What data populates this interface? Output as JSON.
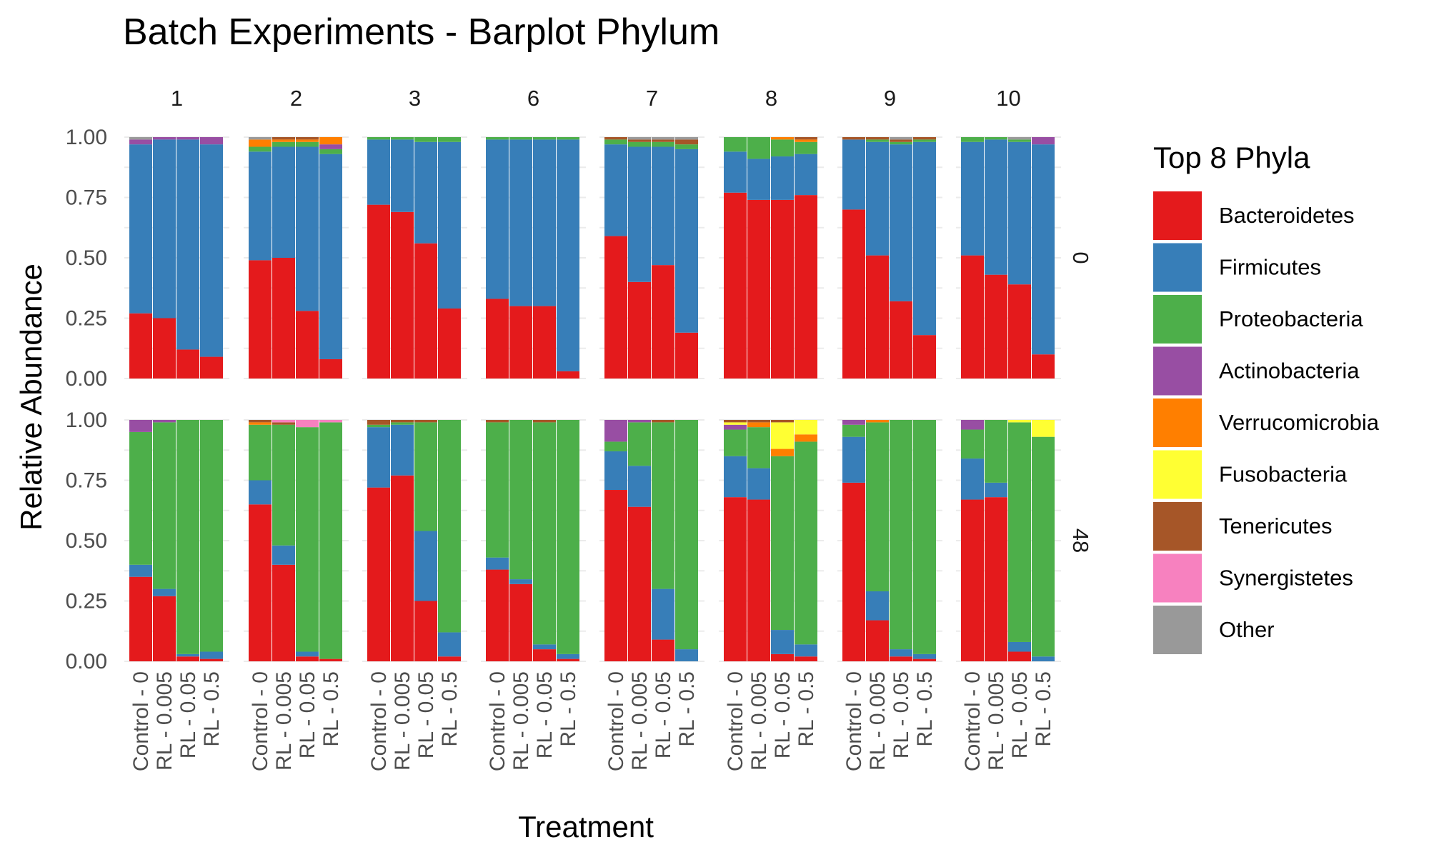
{
  "chart_data": {
    "type": "bar",
    "stacked": true,
    "title": "Batch Experiments - Barplot Phylum",
    "xlabel": "Treatment",
    "ylabel": "Relative Abundance",
    "ylim": [
      0,
      1
    ],
    "y_ticks": [
      "0.00",
      "0.25",
      "0.50",
      "0.75",
      "1.00"
    ],
    "grid": true,
    "legend_position": "right",
    "legend_title": "Top 8 Phyla",
    "categories": [
      "Control - 0",
      "RL - 0.005",
      "RL - 0.05",
      "RL - 0.5"
    ],
    "column_facets": [
      "1",
      "2",
      "3",
      "6",
      "7",
      "8",
      "9",
      "10"
    ],
    "row_facets": [
      "0",
      "48"
    ],
    "phyla": [
      {
        "name": "Bacteroidetes",
        "color": "#E41A1C"
      },
      {
        "name": "Firmicutes",
        "color": "#377EB8"
      },
      {
        "name": "Proteobacteria",
        "color": "#4DAF4A"
      },
      {
        "name": "Actinobacteria",
        "color": "#984EA3"
      },
      {
        "name": "Verrucomicrobia",
        "color": "#FF7F00"
      },
      {
        "name": "Fusobacteria",
        "color": "#FFFF33"
      },
      {
        "name": "Tenericutes",
        "color": "#A65628"
      },
      {
        "name": "Synergistetes",
        "color": "#F781BF"
      },
      {
        "name": "Other",
        "color": "#999999"
      }
    ],
    "panels": [
      {
        "row": "0",
        "col": "1",
        "bars": [
          [
            0.27,
            0.7,
            0.0,
            0.02,
            0,
            0,
            0,
            0,
            0.01
          ],
          [
            0.25,
            0.74,
            0.0,
            0.01,
            0,
            0,
            0,
            0,
            0.0
          ],
          [
            0.12,
            0.87,
            0.0,
            0.01,
            0,
            0,
            0,
            0,
            0.0
          ],
          [
            0.09,
            0.88,
            0.0,
            0.03,
            0,
            0,
            0,
            0,
            0.0
          ]
        ]
      },
      {
        "row": "0",
        "col": "2",
        "bars": [
          [
            0.49,
            0.45,
            0.02,
            0.0,
            0.03,
            0,
            0,
            0,
            0.01
          ],
          [
            0.5,
            0.46,
            0.02,
            0.0,
            0.01,
            0,
            0.01,
            0,
            0.0
          ],
          [
            0.28,
            0.68,
            0.02,
            0.0,
            0.01,
            0,
            0.01,
            0,
            0.0
          ],
          [
            0.08,
            0.85,
            0.02,
            0.02,
            0.03,
            0,
            0,
            0,
            0.0
          ]
        ]
      },
      {
        "row": "0",
        "col": "3",
        "bars": [
          [
            0.72,
            0.27,
            0.01,
            0,
            0,
            0,
            0,
            0,
            0
          ],
          [
            0.69,
            0.3,
            0.01,
            0,
            0,
            0,
            0,
            0,
            0
          ],
          [
            0.56,
            0.42,
            0.02,
            0,
            0,
            0,
            0,
            0,
            0
          ],
          [
            0.29,
            0.69,
            0.02,
            0,
            0,
            0,
            0,
            0,
            0
          ]
        ]
      },
      {
        "row": "0",
        "col": "6",
        "bars": [
          [
            0.33,
            0.66,
            0.01,
            0,
            0,
            0,
            0,
            0,
            0
          ],
          [
            0.3,
            0.69,
            0.01,
            0,
            0,
            0,
            0,
            0,
            0
          ],
          [
            0.3,
            0.69,
            0.01,
            0,
            0,
            0,
            0,
            0,
            0
          ],
          [
            0.03,
            0.96,
            0.01,
            0,
            0,
            0,
            0,
            0,
            0
          ]
        ]
      },
      {
        "row": "0",
        "col": "7",
        "bars": [
          [
            0.59,
            0.38,
            0.02,
            0,
            0,
            0,
            0.01,
            0,
            0
          ],
          [
            0.4,
            0.56,
            0.02,
            0,
            0,
            0,
            0.01,
            0,
            0.01
          ],
          [
            0.47,
            0.49,
            0.02,
            0,
            0,
            0,
            0.01,
            0,
            0.01
          ],
          [
            0.19,
            0.76,
            0.02,
            0,
            0,
            0,
            0.02,
            0,
            0.01
          ]
        ]
      },
      {
        "row": "0",
        "col": "8",
        "bars": [
          [
            0.77,
            0.17,
            0.06,
            0,
            0,
            0,
            0,
            0,
            0
          ],
          [
            0.74,
            0.17,
            0.09,
            0,
            0,
            0,
            0,
            0,
            0
          ],
          [
            0.74,
            0.18,
            0.07,
            0,
            0.01,
            0,
            0,
            0,
            0
          ],
          [
            0.76,
            0.17,
            0.05,
            0,
            0.01,
            0,
            0.01,
            0,
            0
          ]
        ]
      },
      {
        "row": "0",
        "col": "9",
        "bars": [
          [
            0.7,
            0.29,
            0.0,
            0,
            0,
            0,
            0.01,
            0,
            0
          ],
          [
            0.51,
            0.47,
            0.01,
            0,
            0,
            0,
            0.01,
            0,
            0
          ],
          [
            0.32,
            0.65,
            0.01,
            0,
            0,
            0,
            0.01,
            0,
            0.01
          ],
          [
            0.18,
            0.8,
            0.01,
            0,
            0,
            0,
            0.01,
            0,
            0
          ]
        ]
      },
      {
        "row": "0",
        "col": "10",
        "bars": [
          [
            0.51,
            0.47,
            0.02,
            0,
            0,
            0,
            0,
            0,
            0
          ],
          [
            0.43,
            0.56,
            0.01,
            0,
            0,
            0,
            0,
            0,
            0
          ],
          [
            0.39,
            0.59,
            0.01,
            0,
            0,
            0,
            0,
            0,
            0.01
          ],
          [
            0.1,
            0.87,
            0.0,
            0.03,
            0,
            0,
            0,
            0,
            0
          ]
        ]
      },
      {
        "row": "48",
        "col": "1",
        "bars": [
          [
            0.35,
            0.05,
            0.55,
            0.05,
            0,
            0,
            0,
            0,
            0
          ],
          [
            0.27,
            0.03,
            0.69,
            0.01,
            0,
            0,
            0,
            0,
            0
          ],
          [
            0.02,
            0.01,
            0.97,
            0,
            0,
            0,
            0,
            0,
            0
          ],
          [
            0.01,
            0.03,
            0.96,
            0,
            0,
            0,
            0,
            0,
            0
          ]
        ]
      },
      {
        "row": "48",
        "col": "2",
        "bars": [
          [
            0.65,
            0.1,
            0.23,
            0,
            0.01,
            0,
            0.01,
            0,
            0
          ],
          [
            0.4,
            0.08,
            0.5,
            0,
            0,
            0,
            0.01,
            0.01,
            0
          ],
          [
            0.02,
            0.02,
            0.93,
            0,
            0,
            0,
            0,
            0.03,
            0
          ],
          [
            0.01,
            0.0,
            0.98,
            0,
            0,
            0,
            0,
            0.01,
            0
          ]
        ]
      },
      {
        "row": "48",
        "col": "3",
        "bars": [
          [
            0.72,
            0.25,
            0.01,
            0,
            0,
            0,
            0.02,
            0,
            0
          ],
          [
            0.77,
            0.21,
            0.01,
            0,
            0,
            0,
            0.01,
            0,
            0
          ],
          [
            0.25,
            0.29,
            0.45,
            0,
            0,
            0,
            0.01,
            0,
            0
          ],
          [
            0.02,
            0.1,
            0.88,
            0,
            0,
            0,
            0,
            0,
            0
          ]
        ]
      },
      {
        "row": "48",
        "col": "6",
        "bars": [
          [
            0.38,
            0.05,
            0.56,
            0,
            0,
            0,
            0.01,
            0,
            0
          ],
          [
            0.32,
            0.02,
            0.66,
            0,
            0,
            0,
            0,
            0,
            0
          ],
          [
            0.05,
            0.02,
            0.92,
            0,
            0,
            0,
            0.01,
            0,
            0
          ],
          [
            0.01,
            0.02,
            0.97,
            0,
            0,
            0,
            0,
            0,
            0
          ]
        ]
      },
      {
        "row": "48",
        "col": "7",
        "bars": [
          [
            0.71,
            0.16,
            0.04,
            0.09,
            0,
            0,
            0,
            0,
            0
          ],
          [
            0.64,
            0.17,
            0.18,
            0.01,
            0,
            0,
            0,
            0,
            0
          ],
          [
            0.09,
            0.21,
            0.69,
            0,
            0,
            0,
            0.01,
            0,
            0
          ],
          [
            0.0,
            0.05,
            0.95,
            0,
            0,
            0,
            0,
            0,
            0
          ]
        ]
      },
      {
        "row": "48",
        "col": "8",
        "bars": [
          [
            0.68,
            0.17,
            0.11,
            0.02,
            0,
            0.01,
            0.01,
            0,
            0
          ],
          [
            0.67,
            0.13,
            0.17,
            0,
            0.02,
            0,
            0.01,
            0,
            0
          ],
          [
            0.03,
            0.1,
            0.72,
            0,
            0.03,
            0.11,
            0.01,
            0,
            0
          ],
          [
            0.02,
            0.05,
            0.84,
            0,
            0.03,
            0.06,
            0,
            0,
            0
          ]
        ]
      },
      {
        "row": "48",
        "col": "9",
        "bars": [
          [
            0.74,
            0.19,
            0.05,
            0.02,
            0,
            0,
            0,
            0,
            0
          ],
          [
            0.17,
            0.12,
            0.7,
            0,
            0.01,
            0,
            0,
            0,
            0
          ],
          [
            0.02,
            0.03,
            0.95,
            0,
            0,
            0,
            0,
            0,
            0
          ],
          [
            0.01,
            0.02,
            0.97,
            0,
            0,
            0,
            0,
            0,
            0
          ]
        ]
      },
      {
        "row": "48",
        "col": "10",
        "bars": [
          [
            0.67,
            0.17,
            0.12,
            0.04,
            0,
            0,
            0,
            0,
            0
          ],
          [
            0.68,
            0.06,
            0.26,
            0,
            0,
            0,
            0,
            0,
            0
          ],
          [
            0.04,
            0.04,
            0.91,
            0,
            0,
            0.01,
            0,
            0,
            0
          ],
          [
            0.0,
            0.02,
            0.91,
            0,
            0,
            0.07,
            0,
            0,
            0
          ]
        ]
      }
    ]
  }
}
